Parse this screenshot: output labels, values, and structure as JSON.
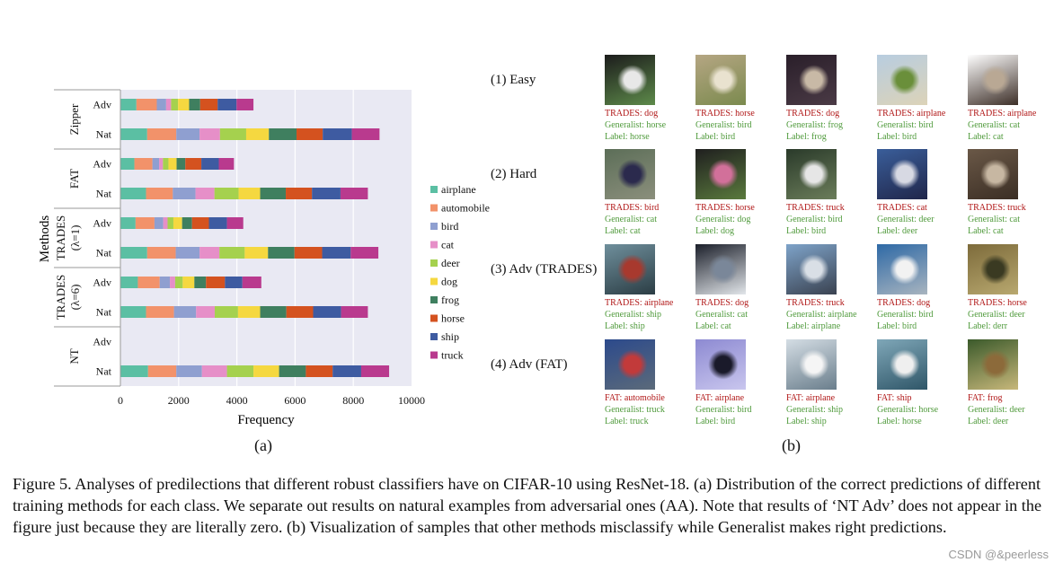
{
  "chart_data": {
    "type": "bar",
    "orientation": "horizontal",
    "stacked": true,
    "xlabel": "Frequency",
    "ylabel": "Methods",
    "xlim": [
      0,
      10000
    ],
    "xticks": [
      "0",
      "2000",
      "4000",
      "6000",
      "8000",
      "10000"
    ],
    "grid": true,
    "legend_position": "right",
    "classes": [
      "airplane",
      "automobile",
      "bird",
      "cat",
      "deer",
      "dog",
      "frog",
      "horse",
      "ship",
      "truck"
    ],
    "colors": [
      "#5bbfa3",
      "#f2926a",
      "#8f9fd0",
      "#e68fc8",
      "#a5d14e",
      "#f5d840",
      "#3f7f5f",
      "#d4521f",
      "#3e5ba1",
      "#b93a8e"
    ],
    "groups": [
      {
        "label": "Zipper",
        "label2": ""
      },
      {
        "label": "FAT",
        "label2": ""
      },
      {
        "label": "TRADES",
        "label2": "(λ=1)"
      },
      {
        "label": "TRADES",
        "label2": "(λ=6)"
      },
      {
        "label": "NT",
        "label2": ""
      }
    ],
    "rows": [
      {
        "group": 0,
        "name": "Adv",
        "values": [
          550,
          700,
          320,
          170,
          240,
          380,
          380,
          600,
          650,
          580
        ]
      },
      {
        "group": 0,
        "name": "Nat",
        "values": [
          920,
          1000,
          800,
          700,
          900,
          780,
          950,
          900,
          1000,
          950
        ]
      },
      {
        "group": 1,
        "name": "Adv",
        "values": [
          480,
          620,
          230,
          130,
          190,
          280,
          300,
          550,
          600,
          520
        ]
      },
      {
        "group": 1,
        "name": "Nat",
        "values": [
          880,
          920,
          780,
          650,
          830,
          740,
          880,
          900,
          980,
          940
        ]
      },
      {
        "group": 2,
        "name": "Adv",
        "values": [
          520,
          650,
          300,
          150,
          200,
          300,
          340,
          580,
          620,
          560
        ]
      },
      {
        "group": 2,
        "name": "Nat",
        "values": [
          920,
          980,
          820,
          680,
          870,
          800,
          910,
          950,
          980,
          950
        ]
      },
      {
        "group": 3,
        "name": "Adv",
        "values": [
          600,
          750,
          350,
          180,
          260,
          400,
          400,
          650,
          600,
          650
        ]
      },
      {
        "group": 3,
        "name": "Nat",
        "values": [
          880,
          960,
          760,
          640,
          800,
          760,
          900,
          920,
          960,
          920
        ]
      },
      {
        "group": 4,
        "name": "Adv",
        "values": [
          0,
          0,
          0,
          0,
          0,
          0,
          0,
          0,
          0,
          0
        ]
      },
      {
        "group": 4,
        "name": "Nat",
        "values": [
          950,
          970,
          880,
          860,
          910,
          880,
          920,
          920,
          980,
          960
        ]
      }
    ]
  },
  "subfig_a_label": "(a)",
  "subfig_b_label": "(b)",
  "samples": {
    "rows": [
      {
        "title": "(1) Easy",
        "items": [
          {
            "pred": "TRADES: dog",
            "gen": "Generalist: horse",
            "label": "Label: horse",
            "palette": [
              "#1c1c1c",
              "#e8e8e8",
              "#5d8a4a"
            ]
          },
          {
            "pred": "TRADES: horse",
            "gen": "Generalist: bird",
            "label": "Label: bird",
            "palette": [
              "#b5a683",
              "#e9e2cf",
              "#7b8a4e"
            ]
          },
          {
            "pred": "TRADES: dog",
            "gen": "Generalist: frog",
            "label": "Label: frog",
            "palette": [
              "#2a1f2a",
              "#c8b9a6",
              "#4a3a45"
            ]
          },
          {
            "pred": "TRADES: airplane",
            "gen": "Generalist: bird",
            "label": "Label: bird",
            "palette": [
              "#b8cde0",
              "#6a8f3a",
              "#dcd3b8"
            ]
          },
          {
            "pred": "TRADES: airplane",
            "gen": "Generalist: cat",
            "label": "Label: cat",
            "palette": [
              "#ffffff",
              "#b9a894",
              "#3d2f28"
            ]
          }
        ]
      },
      {
        "title": "(2) Hard",
        "items": [
          {
            "pred": "TRADES: bird",
            "gen": "Generalist: cat",
            "label": "Label: cat",
            "palette": [
              "#5c6e58",
              "#2b2a4d",
              "#8b8f7c"
            ]
          },
          {
            "pred": "TRADES: horse",
            "gen": "Generalist: dog",
            "label": "Label: dog",
            "palette": [
              "#1f1f1f",
              "#d2709a",
              "#5a7a3d"
            ]
          },
          {
            "pred": "TRADES: truck",
            "gen": "Generalist: bird",
            "label": "Label: bird",
            "palette": [
              "#2a3a2a",
              "#e6e6e6",
              "#6b7d5a"
            ]
          },
          {
            "pred": "TRADES: cat",
            "gen": "Generalist: deer",
            "label": "Label: deer",
            "palette": [
              "#3a5e9a",
              "#d7d9e3",
              "#20264a"
            ]
          },
          {
            "pred": "TRADES: truck",
            "gen": "Generalist: cat",
            "label": "Label: cat",
            "palette": [
              "#6a5847",
              "#c7b7a2",
              "#3b2e24"
            ]
          }
        ]
      },
      {
        "title": "(3) Adv (TRADES)",
        "items": [
          {
            "pred": "TRADES: airplane",
            "gen": "Generalist: ship",
            "label": "Label: ship",
            "palette": [
              "#6f8f9c",
              "#a8392e",
              "#2b3d44"
            ]
          },
          {
            "pred": "TRADES: dog",
            "gen": "Generalist: cat",
            "label": "Label: cat",
            "palette": [
              "#1b1f2a",
              "#7a8799",
              "#e2e6ea"
            ]
          },
          {
            "pred": "TRADES: truck",
            "gen": "Generalist: airplane",
            "label": "Label: airplane",
            "palette": [
              "#7ea3c9",
              "#d9dfe6",
              "#3a4250"
            ]
          },
          {
            "pred": "TRADES: dog",
            "gen": "Generalist: bird",
            "label": "Label: bird",
            "palette": [
              "#2e69a6",
              "#f2f2f2",
              "#a8b4bf"
            ]
          },
          {
            "pred": "TRADES: horse",
            "gen": "Generalist: deer",
            "label": "Label: derr",
            "palette": [
              "#7d6b3b",
              "#3a3a22",
              "#b8a86f"
            ]
          }
        ]
      },
      {
        "title": "(4) Adv (FAT)",
        "items": [
          {
            "pred": "FAT: automobile",
            "gen": "Generalist: truck",
            "label": "Label: truck",
            "palette": [
              "#2c4a8c",
              "#c23a3a",
              "#5b6a7a"
            ]
          },
          {
            "pred": "FAT: airplane",
            "gen": "Generalist: bird",
            "label": "Label: bird",
            "palette": [
              "#8d8ad2",
              "#1a1a2a",
              "#c9c6ee"
            ]
          },
          {
            "pred": "FAT: airplane",
            "gen": "Generalist: ship",
            "label": "Label: ship",
            "palette": [
              "#d4dde4",
              "#f5f5f5",
              "#6a7e8c"
            ]
          },
          {
            "pred": "FAT: ship",
            "gen": "Generalist: horse",
            "label": "Label: horse",
            "palette": [
              "#7fa7b8",
              "#efefef",
              "#2f5668"
            ]
          },
          {
            "pred": "FAT: frog",
            "gen": "Generalist: deer",
            "label": "Label: deer",
            "palette": [
              "#3b5a2b",
              "#8c6a3a",
              "#c7b77a"
            ]
          }
        ]
      }
    ]
  },
  "caption": "Figure 5. Analyses of predilections that different robust classifiers have on CIFAR-10 using ResNet-18. (a) Distribution of the correct predictions of different training methods for each class. We separate out results on natural examples from adversarial ones (AA). Note that results of ‘NT Adv’ does not appear in the figure just because they are literally zero. (b) Visualization of samples that other methods misclassify while Generalist makes right predictions.",
  "watermark": "CSDN @&peerless"
}
